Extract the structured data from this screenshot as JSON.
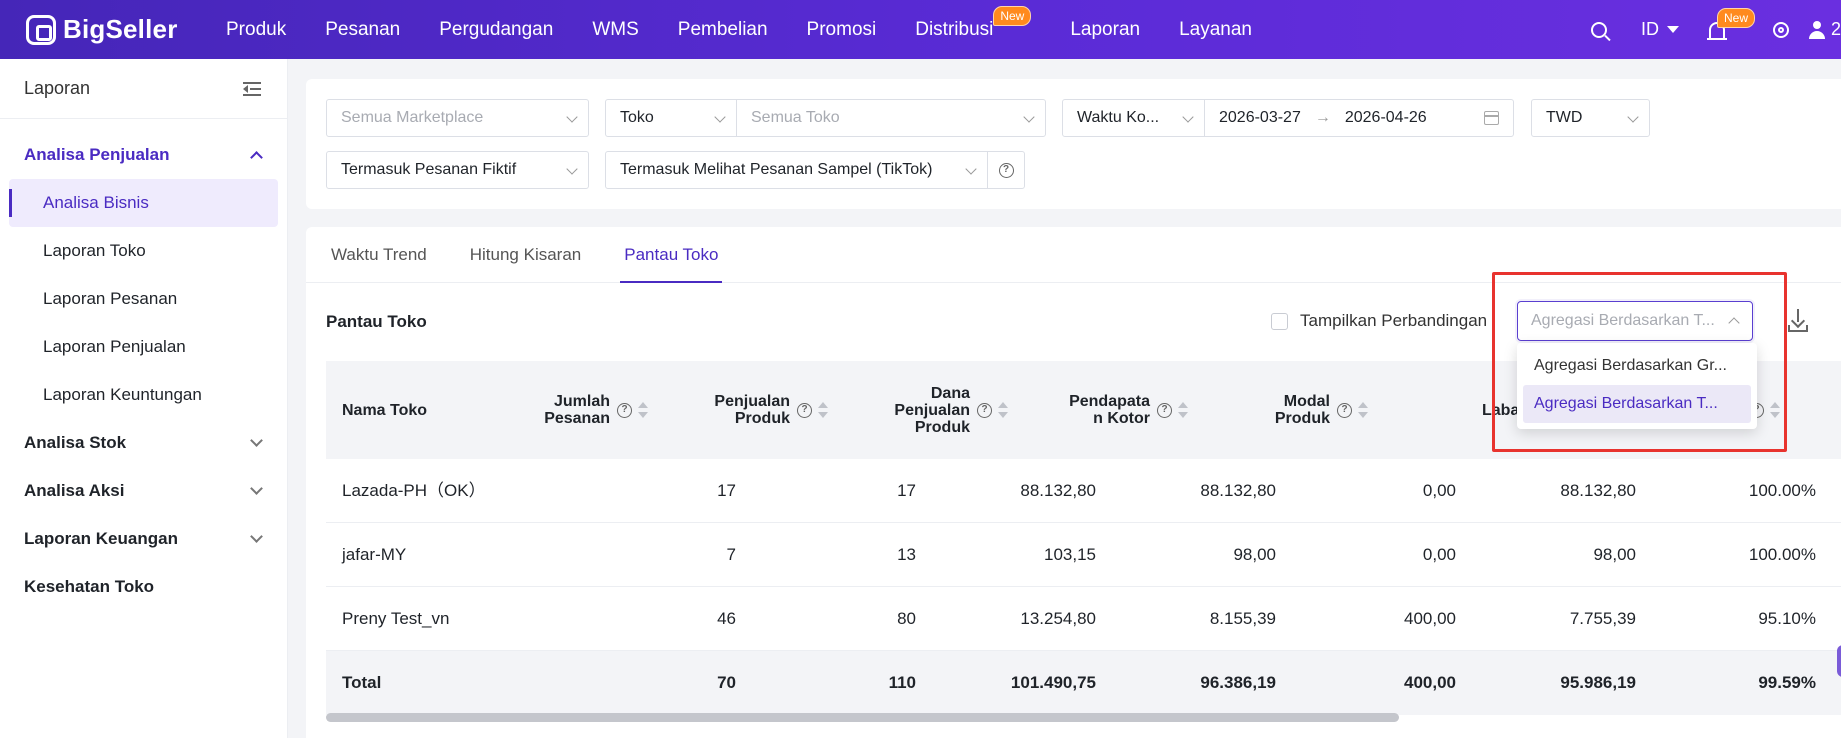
{
  "nav": {
    "logo": "BigSeller",
    "items": [
      {
        "label": "Produk"
      },
      {
        "label": "Pesanan"
      },
      {
        "label": "Pergudangan"
      },
      {
        "label": "WMS"
      },
      {
        "label": "Pembelian"
      },
      {
        "label": "Promosi"
      },
      {
        "label": "Distribusi",
        "badge": "New"
      },
      {
        "label": "Laporan"
      },
      {
        "label": "Layanan"
      }
    ],
    "lang": "ID",
    "bell_badge": "New",
    "user_label": "2",
    "icons": [
      "search-icon",
      "chevron-down-icon",
      "bell-icon",
      "gear-icon",
      "user-icon"
    ]
  },
  "sidebar": {
    "title": "Laporan",
    "groups": [
      {
        "label": "Analisa Penjualan",
        "expanded": true,
        "items": [
          {
            "label": "Analisa Bisnis",
            "active": true
          },
          {
            "label": "Laporan Toko"
          },
          {
            "label": "Laporan Pesanan"
          },
          {
            "label": "Laporan Penjualan"
          },
          {
            "label": "Laporan Keuntungan"
          }
        ]
      },
      {
        "label": "Analisa Stok"
      },
      {
        "label": "Analisa Aksi"
      },
      {
        "label": "Laporan Keuangan"
      },
      {
        "label": "Kesehatan Toko"
      }
    ]
  },
  "filters": {
    "marketplace_placeholder": "Semua Marketplace",
    "store_type": "Toko",
    "store_placeholder": "Semua Toko",
    "time_type": "Waktu Ko...",
    "date_start": "2026-03-27",
    "date_end": "2026-04-26",
    "date_arrow": "→",
    "currency": "TWD",
    "fake_orders": "Termasuk Pesanan Fiktif",
    "sample_orders": "Termasuk Melihat Pesanan Sampel (TikTok)",
    "help": "?"
  },
  "tabs": [
    {
      "label": "Waktu Trend"
    },
    {
      "label": "Hitung Kisaran"
    },
    {
      "label": "Pantau Toko",
      "active": true
    }
  ],
  "section": {
    "title": "Pantau Toko",
    "compare_label": "Tampilkan Perbandingan",
    "agg_placeholder": "Agregasi Berdasarkan T...",
    "agg_options": [
      {
        "label": "Agregasi Berdasarkan Gr..."
      },
      {
        "label": "Agregasi Berdasarkan T...",
        "selected": true
      }
    ]
  },
  "table": {
    "columns": [
      {
        "label": "Nama Toko"
      },
      {
        "label": "Jumlah Pesanan",
        "lines": [
          "Jumlah",
          "Pesanan"
        ],
        "help": "?"
      },
      {
        "label": "Penjualan Produk",
        "lines": [
          "Penjualan",
          "Produk"
        ],
        "help": "?"
      },
      {
        "label": "Dana Penjualan Produk",
        "lines": [
          "Dana",
          "Penjualan",
          "Produk"
        ],
        "help": "?"
      },
      {
        "label": "Pendapatan Kotor",
        "lines": [
          "Pendapata",
          "n Kotor"
        ],
        "help": "?"
      },
      {
        "label": "Modal Produk",
        "lines": [
          "Modal",
          "Produk"
        ],
        "help": "?"
      },
      {
        "label": "Laba",
        "lines": [
          "Laba"
        ]
      },
      {
        "label": "",
        "lines": [
          ""
        ],
        "help": "?"
      }
    ],
    "rows": [
      {
        "name": "Lazada-PH（OK）",
        "orders": "17",
        "sales": "17",
        "fund": "88.132,80",
        "gross": "88.132,80",
        "cost": "0,00",
        "profit": "88.132,80",
        "margin": "100.00%"
      },
      {
        "name": "jafar-MY",
        "orders": "7",
        "sales": "13",
        "fund": "103,15",
        "gross": "98,00",
        "cost": "0,00",
        "profit": "98,00",
        "margin": "100.00%"
      },
      {
        "name": "Preny Test_vn",
        "orders": "46",
        "sales": "80",
        "fund": "13.254,80",
        "gross": "8.155,39",
        "cost": "400,00",
        "profit": "7.755,39",
        "margin": "95.10%"
      }
    ],
    "total": {
      "name": "Total",
      "orders": "70",
      "sales": "110",
      "fund": "101.490,75",
      "gross": "96.386,19",
      "cost": "400,00",
      "profit": "95.986,19",
      "margin": "99.59%"
    }
  },
  "colors": {
    "brand": "#4a2bc2",
    "highlight": "#e8332e",
    "badge": "#ff8a1e"
  }
}
